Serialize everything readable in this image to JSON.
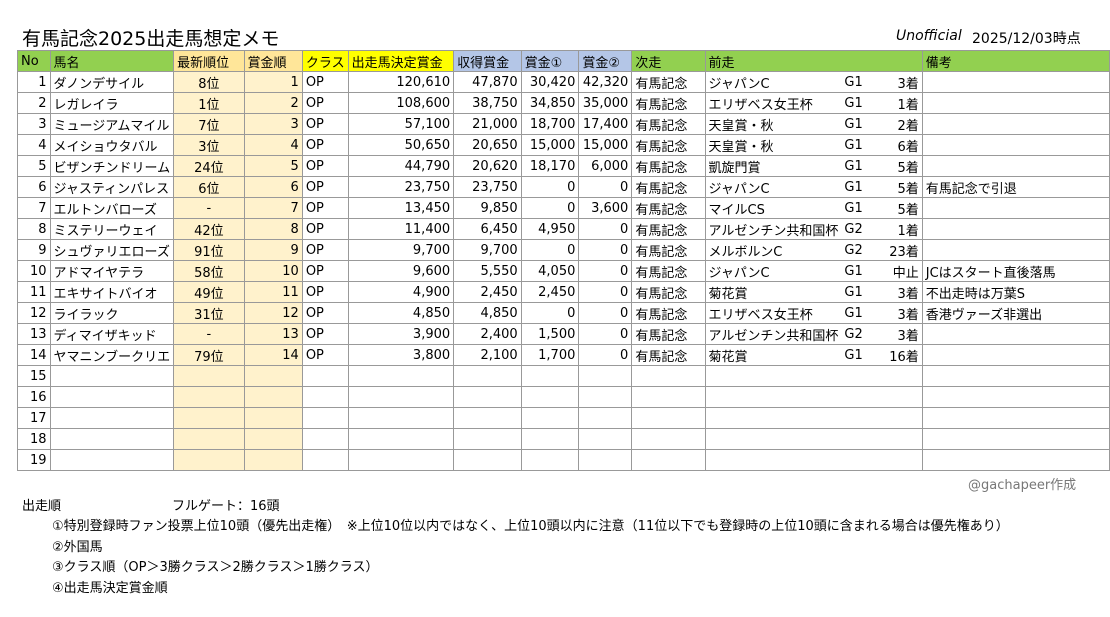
{
  "header": {
    "title": "有馬記念2025出走馬想定メモ",
    "unofficial": "Unofficial",
    "date": "2025/12/03時点"
  },
  "table": {
    "columns": [
      "No",
      "馬名",
      "最新順位",
      "賞金順",
      "クラス",
      "出走馬決定賞金",
      "収得賞金",
      "賞金①",
      "賞金②",
      "次走",
      "前走",
      "備考"
    ],
    "rows": [
      [
        "1",
        "ダノンデサイル",
        "8位",
        "1",
        "OP",
        "120,610",
        "47,870",
        "30,420",
        "42,320",
        "有馬記念",
        "ジャパンC",
        "G1",
        "3着"
      ],
      [
        "2",
        "レガレイラ",
        "1位",
        "2",
        "OP",
        "108,600",
        "38,750",
        "34,850",
        "35,000",
        "有馬記念",
        "エリザベス女王杯",
        "G1",
        "1着"
      ],
      [
        "3",
        "ミュージアムマイル",
        "7位",
        "3",
        "OP",
        "57,100",
        "21,000",
        "18,700",
        "17,400",
        "有馬記念",
        "天皇賞・秋",
        "G1",
        "2着"
      ],
      [
        "4",
        "メイショウタバル",
        "3位",
        "4",
        "OP",
        "50,650",
        "20,650",
        "15,000",
        "15,000",
        "有馬記念",
        "天皇賞・秋",
        "G1",
        "6着"
      ],
      [
        "5",
        "ビザンチンドリーム",
        "24位",
        "5",
        "OP",
        "44,790",
        "20,620",
        "18,170",
        "6,000",
        "有馬記念",
        "凱旋門賞",
        "G1",
        "5着"
      ],
      [
        "6",
        "ジャスティンパレス",
        "6位",
        "6",
        "OP",
        "23,750",
        "23,750",
        "0",
        "0",
        "有馬記念",
        "ジャパンC",
        "G1",
        "5着",
        "有馬記念で引退"
      ],
      [
        "7",
        "エルトンバローズ",
        "-",
        "7",
        "OP",
        "13,450",
        "9,850",
        "0",
        "3,600",
        "有馬記念",
        "マイルCS",
        "G1",
        "5着"
      ],
      [
        "8",
        "ミステリーウェイ",
        "42位",
        "8",
        "OP",
        "11,400",
        "6,450",
        "4,950",
        "0",
        "有馬記念",
        "アルゼンチン共和国杯",
        "G2",
        "1着"
      ],
      [
        "9",
        "シュヴァリエローズ",
        "91位",
        "9",
        "OP",
        "9,700",
        "9,700",
        "0",
        "0",
        "有馬記念",
        "メルボルンC",
        "G2",
        "23着"
      ],
      [
        "10",
        "アドマイヤテラ",
        "58位",
        "10",
        "OP",
        "9,600",
        "5,550",
        "4,050",
        "0",
        "有馬記念",
        "ジャパンC",
        "G1",
        "中止",
        "JCはスタート直後落馬"
      ],
      [
        "11",
        "エキサイトバイオ",
        "49位",
        "11",
        "OP",
        "4,900",
        "2,450",
        "2,450",
        "0",
        "有馬記念",
        "菊花賞",
        "G1",
        "3着",
        "不出走時は万葉S"
      ],
      [
        "12",
        "ライラック",
        "31位",
        "12",
        "OP",
        "4,850",
        "4,850",
        "0",
        "0",
        "有馬記念",
        "エリザベス女王杯",
        "G1",
        "3着",
        "香港ヴァーズ非選出"
      ],
      [
        "13",
        "ディマイザキッド",
        "-",
        "13",
        "OP",
        "3,900",
        "2,400",
        "1,500",
        "0",
        "有馬記念",
        "アルゼンチン共和国杯",
        "G2",
        "3着"
      ],
      [
        "14",
        "ヤマニンブークリエ",
        "79位",
        "14",
        "OP",
        "3,800",
        "2,100",
        "1,700",
        "0",
        "有馬記念",
        "菊花賞",
        "G1",
        "16着"
      ],
      [
        "15"
      ],
      [
        "16"
      ],
      [
        "17"
      ],
      [
        "18"
      ],
      [
        "19"
      ]
    ]
  },
  "credit": "@gachapeer作成",
  "notes": {
    "heading": "出走順",
    "gate": "フルゲート：16頭",
    "items": [
      "①特別登録時ファン投票上位10頭（優先出走権）　※上位10位以内ではなく、上位10頭以内に注意（11位以下でも登録時の上位10頭に含まれる場合は優先権あり）",
      "②外国馬",
      "③クラス順（OP＞3勝クラス＞2勝クラス＞1勝クラス）",
      "④出走馬決定賞金順"
    ]
  }
}
